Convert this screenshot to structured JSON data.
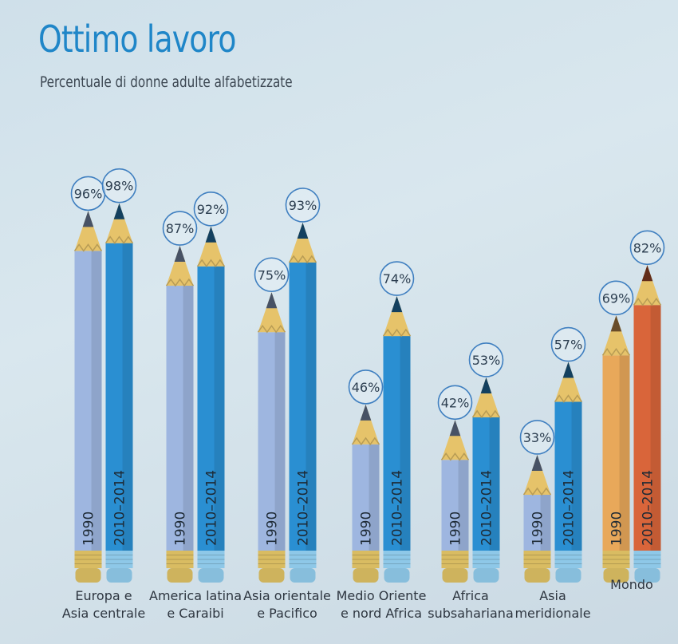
{
  "header": {
    "title": "Ottimo lavoro",
    "subtitle": "Percentuale di donne adulte alfabetizzate"
  },
  "chart_data": {
    "type": "bar",
    "title": "Ottimo lavoro",
    "subtitle": "Percentuale di donne adulte alfabetizzate",
    "categories": [
      [
        "Europa e",
        "Asia centrale"
      ],
      [
        "America latina",
        "e Caraibi"
      ],
      [
        "Asia orientale",
        "e Pacifico"
      ],
      [
        "Medio Oriente",
        "e nord Africa"
      ],
      [
        "Africa",
        "subsahariana"
      ],
      [
        "Asia",
        "meridionale"
      ],
      [
        "Mondo"
      ]
    ],
    "series": [
      {
        "name": "1990",
        "values": [
          96,
          87,
          75,
          46,
          42,
          33,
          69
        ],
        "value_labels": [
          "96%",
          "87%",
          "75%",
          "46%",
          "42%",
          "33%",
          "69%"
        ]
      },
      {
        "name": "2010–2014",
        "values": [
          98,
          92,
          93,
          74,
          53,
          57,
          82
        ],
        "value_labels": [
          "98%",
          "92%",
          "93%",
          "74%",
          "53%",
          "57%",
          "82%"
        ]
      }
    ],
    "ylim": [
      0,
      100
    ],
    "colors": {
      "1990": "#9eb6e0",
      "2010–2014": "#2a8fd2",
      "1990_world": "#e8a85a",
      "2010–2014_world": "#d9653a",
      "wood": "#e6c36a",
      "ferrule_1990": "#d9bc62",
      "ferrule_2010": "#8ec8e8",
      "circle": "#3f7fc0"
    }
  }
}
